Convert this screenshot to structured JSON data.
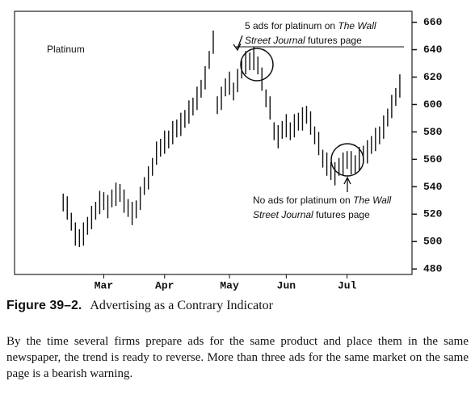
{
  "chart_data": {
    "type": "hilo",
    "label": "Platinum",
    "x": [
      0,
      1,
      2,
      3,
      4,
      5,
      6,
      7,
      8,
      9,
      10,
      11,
      12,
      13,
      14,
      15,
      16,
      17,
      18,
      19,
      20,
      21,
      22,
      23,
      24,
      25,
      26,
      27,
      28,
      29,
      30,
      31,
      32,
      33,
      34,
      35,
      36,
      37,
      38,
      39,
      40,
      41,
      42,
      43,
      44,
      45,
      46,
      47,
      48,
      49,
      50,
      51,
      52,
      53,
      54,
      55,
      56,
      57,
      58,
      59,
      60,
      61,
      62,
      63,
      64,
      65,
      66,
      67,
      68,
      69,
      70,
      71,
      72,
      73,
      74,
      75,
      76,
      77,
      78,
      79,
      80,
      81,
      82,
      83
    ],
    "high": [
      535,
      533,
      521,
      514,
      509,
      514,
      518,
      526,
      529,
      537,
      536,
      534,
      538,
      543,
      542,
      538,
      531,
      529,
      530,
      540,
      547,
      555,
      561,
      573,
      575,
      581,
      581,
      588,
      589,
      594,
      596,
      603,
      605,
      613,
      618,
      628,
      639,
      654,
      606,
      613,
      619,
      624,
      616,
      626,
      632,
      639,
      638,
      642,
      635,
      627,
      611,
      606,
      587,
      585,
      588,
      593,
      587,
      593,
      594,
      598,
      599,
      595,
      584,
      580,
      567,
      565,
      558,
      558,
      561,
      565,
      566,
      566,
      563,
      569,
      570,
      574,
      577,
      583,
      584,
      592,
      597,
      607,
      612,
      622
    ],
    "low": [
      522,
      516,
      508,
      497,
      496,
      497,
      505,
      509,
      516,
      520,
      523,
      517,
      525,
      526,
      529,
      521,
      518,
      512,
      517,
      523,
      534,
      538,
      548,
      556,
      562,
      564,
      568,
      571,
      576,
      577,
      583,
      586,
      592,
      596,
      605,
      611,
      626,
      637,
      593,
      596,
      606,
      607,
      603,
      609,
      619,
      622,
      625,
      625,
      622,
      610,
      598,
      589,
      574,
      568,
      575,
      576,
      574,
      576,
      581,
      581,
      586,
      578,
      571,
      563,
      554,
      548,
      545,
      541,
      548,
      548,
      553,
      549,
      550,
      552,
      557,
      557,
      564,
      566,
      571,
      575,
      584,
      590,
      599,
      605
    ],
    "color": "#111111",
    "xlim": [
      -12,
      86
    ],
    "xticks": [
      {
        "value": 10,
        "label": "Mar"
      },
      {
        "value": 25,
        "label": "Apr"
      },
      {
        "value": 41,
        "label": "May"
      },
      {
        "value": 55,
        "label": "Jun"
      },
      {
        "value": 70,
        "label": "Jul"
      }
    ],
    "ylim": [
      476,
      668
    ],
    "yticks": [
      480,
      500,
      520,
      540,
      560,
      580,
      600,
      620,
      640,
      660
    ],
    "y_axis_side": "right",
    "annotations": [
      {
        "lines": [
          [
            {
              "text": "5 ads for platinum on "
            },
            {
              "text": "The Wall",
              "italic": true
            }
          ],
          [
            {
              "text": "Street Journal",
              "italic": true
            },
            {
              "text": " futures page"
            }
          ]
        ]
      },
      {
        "lines": [
          [
            {
              "text": "No ads for platinum on "
            },
            {
              "text": "The Wall",
              "italic": true
            }
          ],
          [
            {
              "text": "Street Journal",
              "italic": true
            },
            {
              "text": " futures page"
            }
          ]
        ]
      }
    ]
  },
  "caption": {
    "label": "Figure 39–2.",
    "title": "Advertising as a Contrary Indicator"
  },
  "body": "By the time several firms prepare ads for the same product and place them in the same newspaper, the trend is ready to reverse. More than three ads for the same market on the same page is a bearish warning."
}
